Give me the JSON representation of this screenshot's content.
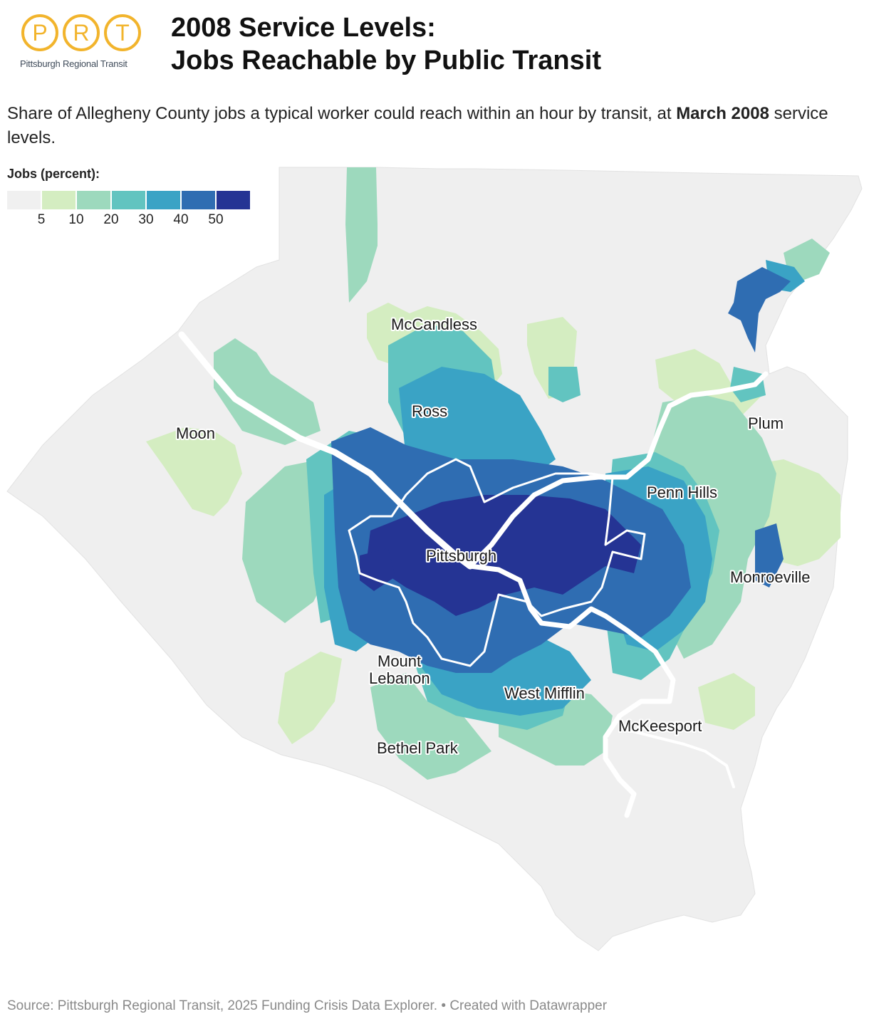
{
  "logo": {
    "letters": [
      "P",
      "R",
      "T"
    ],
    "org_name": "Pittsburgh Regional Transit",
    "brand_color": "#f2b42c"
  },
  "title": {
    "line1": "2008 Service Levels:",
    "line2": "Jobs Reachable by Public Transit"
  },
  "subtitle": {
    "part1": "Share of Allegheny County jobs a typical worker could reach within an hour by transit, at ",
    "bold": "March 2008",
    "part2": " service levels."
  },
  "legend": {
    "title": "Jobs (percent):",
    "colors": [
      "#f0f0f0",
      "#d4edc1",
      "#9dd9bd",
      "#62c4c0",
      "#3aa3c5",
      "#2f6db2",
      "#253494"
    ],
    "ticks": [
      "5",
      "10",
      "20",
      "30",
      "40",
      "50"
    ]
  },
  "map": {
    "places": [
      "McCandless",
      "Ross",
      "Moon",
      "Plum",
      "Penn Hills",
      "Pittsburgh",
      "Monroeville",
      "Mount Lebanon",
      "West Mifflin",
      "McKeesport",
      "Bethel Park"
    ]
  },
  "footer": {
    "source": "Source: Pittsburgh Regional Transit, 2025 Funding Crisis Data Explorer.",
    "separator": " • ",
    "credit": "Created with Datawrapper"
  }
}
